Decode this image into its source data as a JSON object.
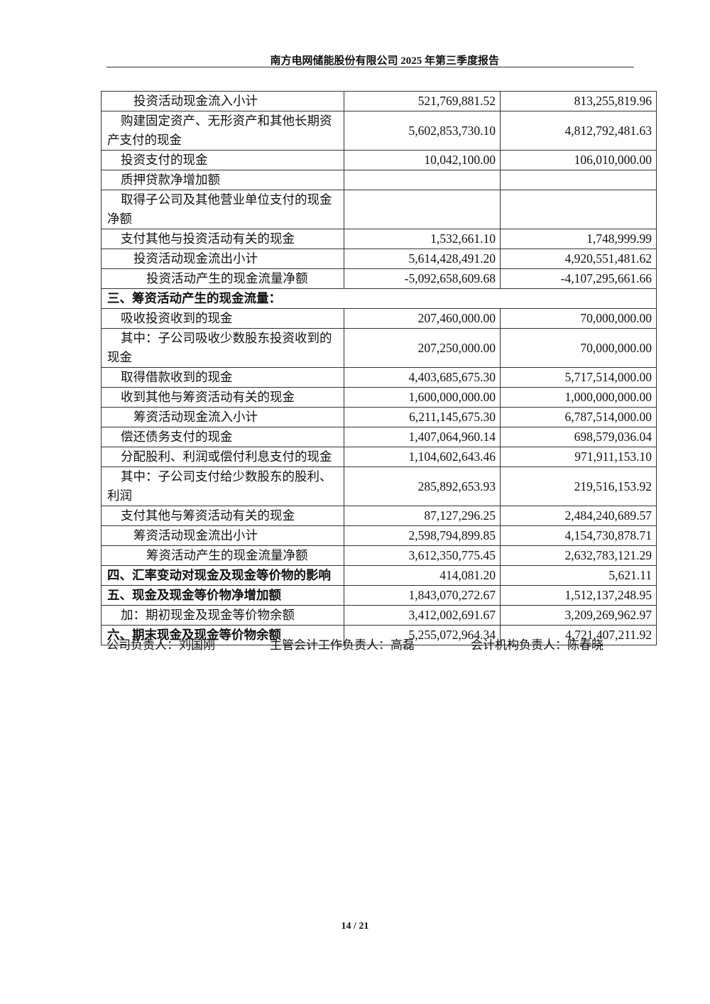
{
  "header": {
    "title": "南方电网储能股份有限公司  2025 年第三季度报告"
  },
  "table": {
    "rows": [
      {
        "label": "投资活动现金流入小计",
        "level": 2,
        "current": "521,769,881.52",
        "prior": "813,255,819.96"
      },
      {
        "label": "购建固定资产、无形资产和其他长期资产支付的现金",
        "level": 1,
        "current": "5,602,853,730.10",
        "prior": "4,812,792,481.63"
      },
      {
        "label": "投资支付的现金",
        "level": 1,
        "current": "10,042,100.00",
        "prior": "106,010,000.00"
      },
      {
        "label": "质押贷款净增加额",
        "level": 1,
        "current": "",
        "prior": ""
      },
      {
        "label": "取得子公司及其他营业单位支付的现金净额",
        "level": 1,
        "current": "",
        "prior": ""
      },
      {
        "label": "支付其他与投资活动有关的现金",
        "level": 1,
        "current": "1,532,661.10",
        "prior": "1,748,999.99"
      },
      {
        "label": "投资活动现金流出小计",
        "level": 2,
        "current": "5,614,428,491.20",
        "prior": "4,920,551,481.62"
      },
      {
        "label": "投资活动产生的现金流量净额",
        "level": 3,
        "current": "-5,092,658,609.68",
        "prior": "-4,107,295,661.66"
      },
      {
        "label": "三、筹资活动产生的现金流量：",
        "level": 0,
        "section": true
      },
      {
        "label": "吸收投资收到的现金",
        "level": 1,
        "current": "207,460,000.00",
        "prior": "70,000,000.00"
      },
      {
        "label": "其中：子公司吸收少数股东投资收到的现金",
        "level": 1,
        "current": "207,250,000.00",
        "prior": "70,000,000.00"
      },
      {
        "label": "取得借款收到的现金",
        "level": 1,
        "current": "4,403,685,675.30",
        "prior": "5,717,514,000.00"
      },
      {
        "label": "收到其他与筹资活动有关的现金",
        "level": 1,
        "current": "1,600,000,000.00",
        "prior": "1,000,000,000.00"
      },
      {
        "label": "筹资活动现金流入小计",
        "level": 2,
        "current": "6,211,145,675.30",
        "prior": "6,787,514,000.00"
      },
      {
        "label": "偿还债务支付的现金",
        "level": 1,
        "current": "1,407,064,960.14",
        "prior": "698,579,036.04"
      },
      {
        "label": "分配股利、利润或偿付利息支付的现金",
        "level": 1,
        "current": "1,104,602,643.46",
        "prior": "971,911,153.10"
      },
      {
        "label": "其中：子公司支付给少数股东的股利、利润",
        "level": 1,
        "current": "285,892,653.93",
        "prior": "219,516,153.92"
      },
      {
        "label": "支付其他与筹资活动有关的现金",
        "level": 1,
        "current": "87,127,296.25",
        "prior": "2,484,240,689.57"
      },
      {
        "label": "筹资活动现金流出小计",
        "level": 2,
        "current": "2,598,794,899.85",
        "prior": "4,154,730,878.71"
      },
      {
        "label": "筹资活动产生的现金流量净额",
        "level": 3,
        "current": "3,612,350,775.45",
        "prior": "2,632,783,121.29"
      },
      {
        "label": "四、汇率变动对现金及现金等价物的影响",
        "level": 0,
        "current": "414,081.20",
        "prior": "5,621.11"
      },
      {
        "label": "五、现金及现金等价物净增加额",
        "level": 0,
        "current": "1,843,070,272.67",
        "prior": "1,512,137,248.95"
      },
      {
        "label": "加：期初现金及现金等价物余额",
        "level": 1,
        "current": "3,412,002,691.67",
        "prior": "3,209,269,962.97"
      },
      {
        "label": "六、期末现金及现金等价物余额",
        "level": 0,
        "current": "5,255,072,964.34",
        "prior": "4,721,407,211.92"
      }
    ]
  },
  "signatures": {
    "company_head": "公司负责人：刘国刚",
    "accounting_head": "主管会计工作负责人：高磊",
    "accounting_org_head": "会计机构负责人：陈春晓"
  },
  "footer": {
    "page": "14 / 21"
  }
}
